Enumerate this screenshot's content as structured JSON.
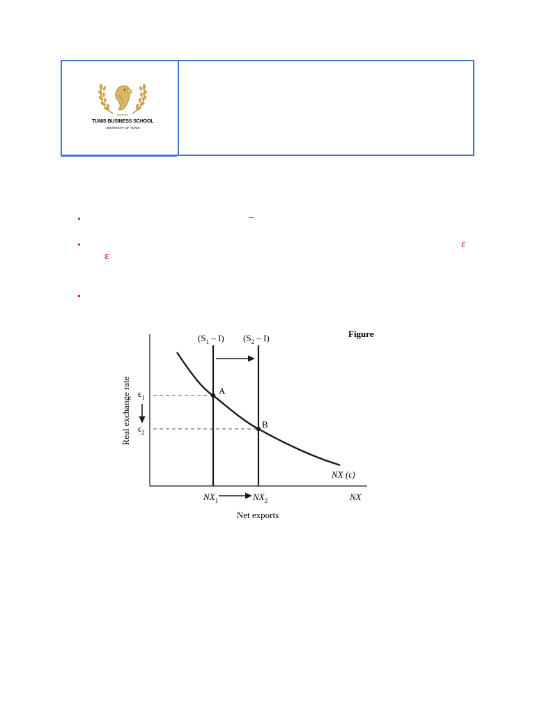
{
  "header": {
    "logo": {
      "name": "TUNIS BUSINESS SCHOOL",
      "subtitle": "UNIVERSITY OF TUNIS",
      "emblem": "eagle-laurel-emblem-icon"
    }
  },
  "bullets": [
    {
      "marker": "•",
      "glyph": "–"
    },
    {
      "marker": "•",
      "glyph_end": "ε",
      "glyph_start": "ε"
    },
    {
      "marker": "•"
    }
  ],
  "figure": {
    "label": "Figure",
    "colors": {
      "curve": "#1a1a1a",
      "dashed": "#555555"
    },
    "chart_data": {
      "type": "line",
      "xlabel": "Net exports",
      "ylabel": "Real exchange rate",
      "x_axis_symbol": "NX",
      "series": [
        {
          "name": "NX (ϵ)",
          "description": "downward sloping net exports schedule"
        }
      ],
      "vertical_lines": [
        {
          "label_pre": "(S",
          "label_sub": "1",
          "label_post": " – I)",
          "x_tick": "NX",
          "x_tick_sub": "1"
        },
        {
          "label_pre": "(S",
          "label_sub": "2",
          "label_post": " – I)",
          "x_tick": "NX",
          "x_tick_sub": "2"
        }
      ],
      "points": [
        {
          "label": "A",
          "y_tick": "ϵ",
          "y_tick_sub": "1"
        },
        {
          "label": "B",
          "y_tick": "ϵ",
          "y_tick_sub": "2"
        }
      ],
      "grid": false,
      "legend": "none"
    }
  }
}
